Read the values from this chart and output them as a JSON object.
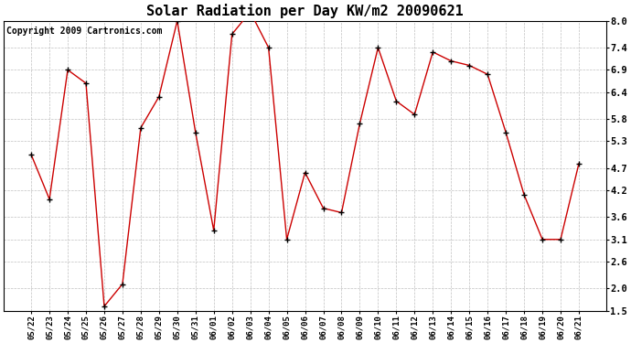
{
  "title": "Solar Radiation per Day KW/m2 20090621",
  "copyright": "Copyright 2009 Cartronics.com",
  "labels": [
    "05/22",
    "05/23",
    "05/24",
    "05/25",
    "05/26",
    "05/27",
    "05/28",
    "05/29",
    "05/30",
    "05/31",
    "06/01",
    "06/02",
    "06/03",
    "06/04",
    "06/05",
    "06/06",
    "06/07",
    "06/08",
    "06/09",
    "06/10",
    "06/11",
    "06/12",
    "06/13",
    "06/14",
    "06/15",
    "06/16",
    "06/17",
    "06/18",
    "06/19",
    "06/20",
    "06/21"
  ],
  "values": [
    5.0,
    4.0,
    6.9,
    6.6,
    1.6,
    2.1,
    5.6,
    6.3,
    8.0,
    5.5,
    3.3,
    7.7,
    8.2,
    7.4,
    3.1,
    4.6,
    3.8,
    3.7,
    5.7,
    7.4,
    6.2,
    5.9,
    7.3,
    7.1,
    7.0,
    6.8,
    5.5,
    4.1,
    3.1,
    3.1,
    4.8
  ],
  "ylim": [
    1.5,
    8.0
  ],
  "yticks": [
    1.5,
    2.0,
    2.6,
    3.1,
    3.6,
    4.2,
    4.7,
    5.3,
    5.8,
    6.4,
    6.9,
    7.4,
    8.0
  ],
  "line_color": "#cc0000",
  "marker": "+",
  "marker_color": "#000000",
  "bg_color": "#ffffff",
  "grid_color": "#c0c0c0",
  "title_fontsize": 11,
  "copyright_fontsize": 7
}
